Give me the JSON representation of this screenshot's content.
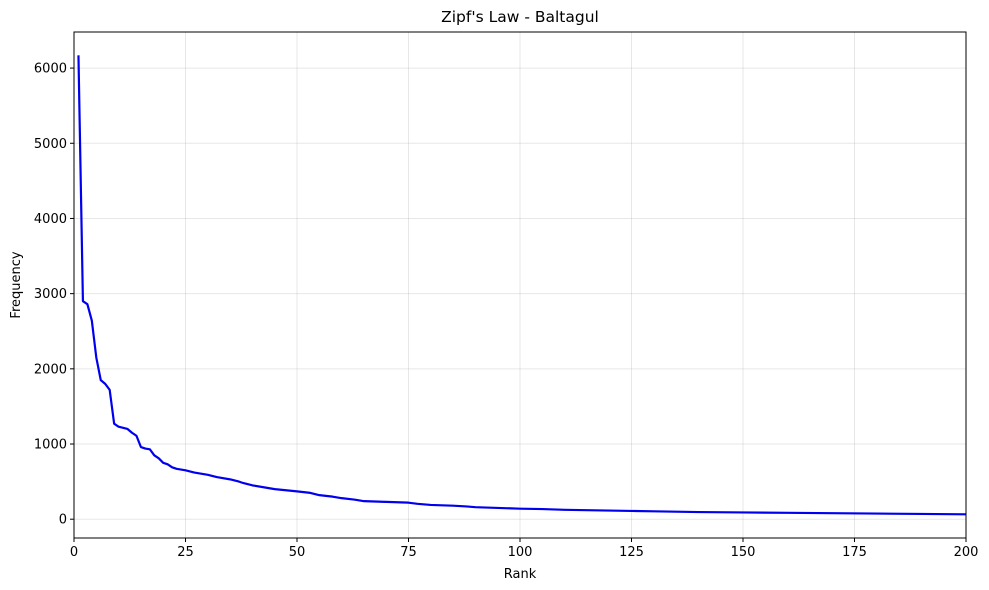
{
  "chart_data": {
    "type": "line",
    "title": "Zipf's Law - Baltagul",
    "xlabel": "Rank",
    "ylabel": "Frequency",
    "xlim": [
      0,
      200
    ],
    "ylim": [
      -250,
      6480
    ],
    "xticks": [
      0,
      25,
      50,
      75,
      100,
      125,
      150,
      175,
      200
    ],
    "yticks": [
      0,
      1000,
      2000,
      3000,
      4000,
      5000,
      6000
    ],
    "grid": true,
    "line_color": "#0000ee",
    "series": [
      {
        "x": [
          1,
          2,
          3,
          4,
          5,
          6,
          7,
          8,
          9,
          10,
          12,
          13,
          14,
          15,
          16,
          17,
          18,
          19,
          20,
          21,
          22,
          23,
          25,
          27,
          30,
          32,
          35,
          37,
          38,
          40,
          43,
          45,
          50,
          53,
          55,
          58,
          60,
          63,
          65,
          70,
          75,
          77,
          80,
          85,
          88,
          90,
          95,
          100,
          105,
          110,
          115,
          120,
          125,
          130,
          135,
          140,
          150,
          160,
          170,
          180,
          190,
          200
        ],
        "y": [
          6170,
          2900,
          2860,
          2640,
          2150,
          1850,
          1800,
          1720,
          1270,
          1230,
          1200,
          1150,
          1110,
          960,
          940,
          930,
          850,
          810,
          750,
          730,
          690,
          670,
          650,
          620,
          590,
          560,
          530,
          500,
          480,
          450,
          420,
          400,
          370,
          350,
          320,
          300,
          280,
          260,
          240,
          230,
          220,
          205,
          190,
          180,
          170,
          160,
          150,
          140,
          135,
          125,
          120,
          115,
          110,
          105,
          100,
          95,
          90,
          85,
          80,
          75,
          70,
          65
        ]
      }
    ]
  }
}
